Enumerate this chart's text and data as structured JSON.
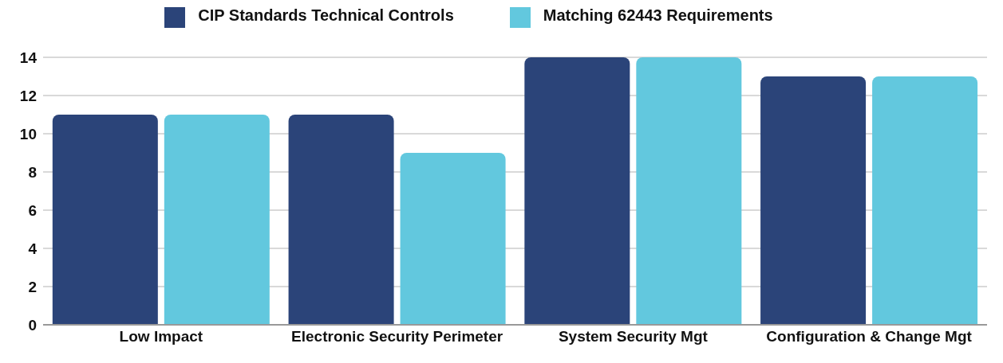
{
  "chart_data": {
    "type": "bar",
    "categories": [
      "Low Impact",
      "Electronic Security Perimeter",
      "System Security Mgt",
      "Configuration & Change Mgt"
    ],
    "series": [
      {
        "name": "CIP Standards Technical Controls",
        "color": "#2b4479",
        "values": [
          11,
          11,
          14,
          13
        ]
      },
      {
        "name": "Matching 62443 Requirements",
        "color": "#62c8de",
        "values": [
          11,
          9,
          14,
          13
        ]
      }
    ],
    "ylim": [
      0,
      14
    ],
    "yticks": [
      0,
      2,
      4,
      6,
      8,
      10,
      12,
      14
    ],
    "grid": "y",
    "legend": "top"
  }
}
